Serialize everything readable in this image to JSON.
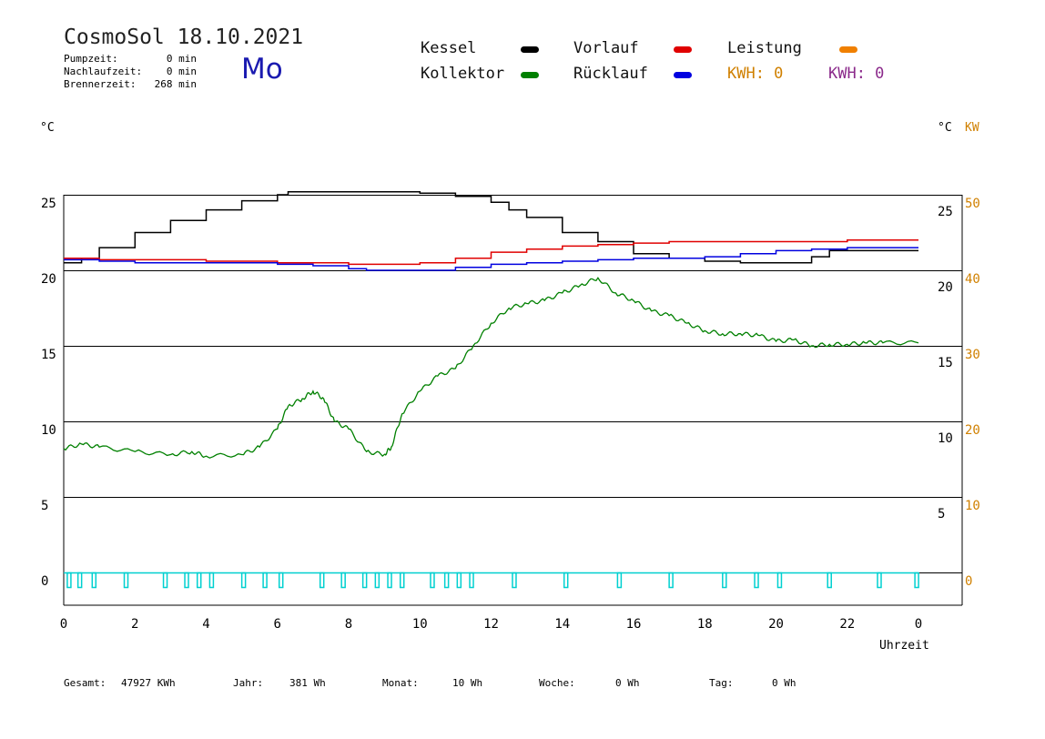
{
  "header": {
    "title": "CosmoSol 18.10.2021",
    "weekday": "Mo",
    "stats": [
      {
        "label": "Pumpzeit:",
        "value": "0 min"
      },
      {
        "label": "Nachlaufzeit:",
        "value": "0 min"
      },
      {
        "label": "Brennerzeit:",
        "value": "268 min"
      }
    ]
  },
  "legend": {
    "kessel": {
      "label": "Kessel",
      "color": "#000000"
    },
    "vorlauf": {
      "label": "Vorlauf",
      "color": "#e00000"
    },
    "leistung": {
      "label": "Leistung",
      "color": "#f08000"
    },
    "kollektor": {
      "label": "Kollektor",
      "color": "#008000"
    },
    "ruecklauf": {
      "label": "Rücklauf",
      "color": "#0000e0"
    },
    "kwh1": "KWH: 0",
    "kwh2": "KWH: 0",
    "kwh1_color": "#d08000",
    "kwh2_color": "#8b2a8b"
  },
  "units": {
    "left": "°C",
    "right_c": "°C",
    "right_kw": "KW"
  },
  "footer": {
    "gesamt_label": "Gesamt:",
    "gesamt_value": "47927 KWh",
    "jahr_label": "Jahr:",
    "jahr_value": "381 Wh",
    "monat_label": "Monat:",
    "monat_value": "10 Wh",
    "woche_label": "Woche:",
    "woche_value": "0 Wh",
    "tag_label": "Tag:",
    "tag_value": "0 Wh"
  },
  "chart_data": {
    "type": "line",
    "xlabel": "Uhrzeit",
    "x_ticks": [
      "0",
      "2",
      "4",
      "6",
      "8",
      "10",
      "12",
      "14",
      "16",
      "18",
      "20",
      "22",
      "0"
    ],
    "y_left_ticks": [
      "25",
      "20",
      "15",
      "10",
      "5",
      "0"
    ],
    "y_right_c_ticks": [
      "25",
      "20",
      "15",
      "10",
      "5"
    ],
    "y_right_kw_ticks": [
      "50",
      "40",
      "30",
      "20",
      "10",
      "0"
    ],
    "x_range": [
      0,
      24
    ],
    "lower_band": {
      "ylim": [
        0,
        25
      ]
    },
    "upper_band": {
      "ylim": [
        20,
        25
      ]
    },
    "series": [
      {
        "name": "Kessel",
        "color": "#000000",
        "band": "upper",
        "x": [
          0,
          0.5,
          1,
          2,
          3,
          4,
          5,
          6,
          6.3,
          7,
          8,
          9,
          10,
          11,
          12,
          12.5,
          13,
          14,
          15,
          16,
          17,
          18,
          19,
          20,
          21,
          21.5,
          22,
          23,
          24
        ],
        "y": [
          20.5,
          20.8,
          21.5,
          22.5,
          23.3,
          24.0,
          24.6,
          25.0,
          25.2,
          25.2,
          25.2,
          25.2,
          25.1,
          24.9,
          24.5,
          24.0,
          23.5,
          22.5,
          21.9,
          21.1,
          20.8,
          20.6,
          20.5,
          20.5,
          20.9,
          21.3,
          21.3,
          21.3,
          21.3
        ]
      },
      {
        "name": "Vorlauf",
        "color": "#e00000",
        "band": "upper",
        "x": [
          0,
          1,
          2,
          4,
          6,
          8,
          9,
          10,
          11,
          12,
          13,
          14,
          15,
          16,
          17,
          18,
          20,
          22,
          24
        ],
        "y": [
          20.8,
          20.7,
          20.7,
          20.6,
          20.5,
          20.4,
          20.4,
          20.5,
          20.8,
          21.2,
          21.4,
          21.6,
          21.7,
          21.8,
          21.9,
          21.9,
          21.9,
          22.0,
          22.0
        ]
      },
      {
        "name": "Rücklauf",
        "color": "#0000e0",
        "band": "upper",
        "x": [
          0,
          1,
          2,
          4,
          6,
          7,
          8,
          8.5,
          9,
          10,
          11,
          12,
          13,
          14,
          15,
          16,
          17,
          18,
          19,
          20,
          21,
          22,
          23,
          24
        ],
        "y": [
          20.7,
          20.6,
          20.5,
          20.5,
          20.4,
          20.3,
          20.1,
          20.0,
          20.0,
          20.0,
          20.2,
          20.4,
          20.5,
          20.6,
          20.7,
          20.8,
          20.8,
          20.9,
          21.1,
          21.3,
          21.4,
          21.5,
          21.5,
          21.5
        ]
      },
      {
        "name": "Kollektor",
        "color": "#008000",
        "band": "lower",
        "x": [
          0,
          0.5,
          1,
          2,
          3,
          3.6,
          4,
          5,
          5.5,
          6,
          6.3,
          6.7,
          7,
          7.3,
          7.6,
          8,
          8.5,
          9,
          9.2,
          9.5,
          10,
          10.5,
          11,
          11.5,
          12,
          12.5,
          13,
          13.5,
          14,
          14.5,
          15,
          15.5,
          16,
          16.5,
          17,
          17.5,
          18,
          18.5,
          19,
          19.5,
          20,
          20.5,
          21,
          21.5,
          22,
          22.5,
          23,
          24
        ],
        "y": [
          8.2,
          8.5,
          8.3,
          8.0,
          7.8,
          8.0,
          7.7,
          7.8,
          8.3,
          9.5,
          11.0,
          11.5,
          12.0,
          11.5,
          10.0,
          9.5,
          8.0,
          7.8,
          8.3,
          10.5,
          12.0,
          13.0,
          13.5,
          15.0,
          16.5,
          17.5,
          17.8,
          18.0,
          18.5,
          19.0,
          19.5,
          18.5,
          18.0,
          17.3,
          17.0,
          16.5,
          16.0,
          15.8,
          15.8,
          15.7,
          15.3,
          15.4,
          15.0,
          15.1,
          15.1,
          15.2,
          15.2,
          15.2
        ]
      }
    ],
    "pump_pulses_h": [
      0.1,
      0.4,
      0.8,
      1.7,
      2.8,
      3.4,
      3.75,
      4.1,
      5.0,
      5.6,
      6.05,
      7.2,
      7.8,
      8.4,
      8.75,
      9.1,
      9.45,
      10.3,
      10.7,
      11.05,
      11.4,
      12.6,
      14.05,
      15.55,
      17.0,
      18.5,
      19.4,
      20.05,
      21.45,
      22.85,
      23.9
    ]
  }
}
